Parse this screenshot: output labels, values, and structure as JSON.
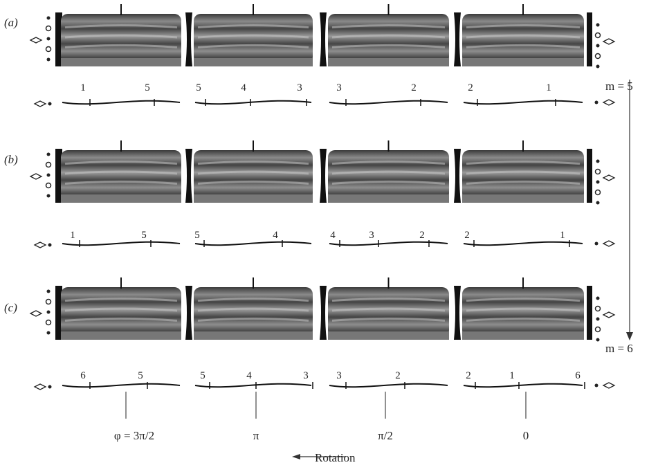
{
  "figure": {
    "rows": [
      {
        "label": "(a)",
        "panels": [
          [
            "1",
            "5"
          ],
          [
            "5",
            "4",
            "3"
          ],
          [
            "3",
            "2"
          ],
          [
            "2",
            "1"
          ]
        ]
      },
      {
        "label": "(b)",
        "panels": [
          [
            "1",
            "5"
          ],
          [
            "5",
            "4"
          ],
          [
            "4",
            "3",
            "2"
          ],
          [
            "2",
            "1"
          ]
        ]
      },
      {
        "label": "(c)",
        "panels": [
          [
            "6",
            "5"
          ],
          [
            "5",
            "4",
            "3"
          ],
          [
            "3",
            "2"
          ],
          [
            "2",
            "1",
            "6"
          ]
        ]
      }
    ],
    "mode_labels": [
      "m = 5",
      "m = 6"
    ],
    "phase_labels": [
      "φ = 3π/2",
      "π",
      "π/2",
      "0"
    ],
    "rotation": "Rotation"
  }
}
